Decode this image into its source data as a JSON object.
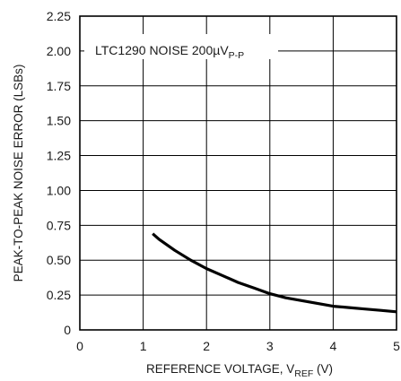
{
  "chart_data": {
    "type": "line",
    "title": "",
    "xlabel": "REFERENCE VOLTAGE, V",
    "xlabel_subscript": "REF",
    "xlabel_suffix": " (V)",
    "ylabel": "PEAK-TO-PEAK NOISE ERROR (LSBs)",
    "xlim": [
      0,
      5
    ],
    "ylim": [
      0,
      2.25
    ],
    "x_ticks": [
      "0",
      "1",
      "2",
      "3",
      "4",
      "5"
    ],
    "y_ticks": [
      "0",
      "0.25",
      "0.50",
      "0.75",
      "1.00",
      "1.25",
      "1.50",
      "1.75",
      "2.00",
      "2.25"
    ],
    "grid": true,
    "annotation": {
      "text": "LTC1290 NOISE 200µV",
      "subscript": "P-P"
    },
    "series": [
      {
        "color": "#000000",
        "x": [
          1.15,
          1.25,
          1.5,
          1.75,
          2.0,
          2.25,
          2.5,
          2.75,
          3.0,
          3.25,
          3.5,
          3.75,
          4.0,
          4.25,
          4.5,
          4.75,
          5.0
        ],
        "y": [
          0.69,
          0.65,
          0.57,
          0.5,
          0.44,
          0.39,
          0.34,
          0.3,
          0.26,
          0.23,
          0.21,
          0.19,
          0.17,
          0.16,
          0.15,
          0.14,
          0.13
        ]
      }
    ]
  }
}
